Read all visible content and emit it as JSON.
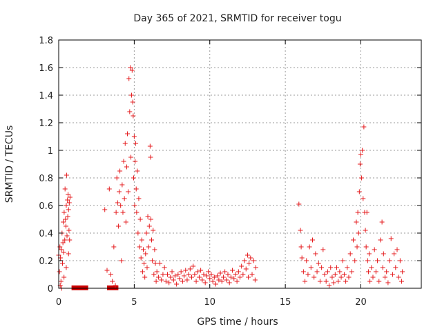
{
  "chart_data": {
    "type": "scatter",
    "title": "Day 365 of 2021, SRMTID for receiver togu",
    "xlabel": "GPS time / hours",
    "ylabel": "SRMTID / TECUs",
    "xlim": [
      0,
      24
    ],
    "ylim": [
      0,
      1.8
    ],
    "xticks": [
      0,
      5,
      10,
      15,
      20
    ],
    "xtick_labels": [
      "0",
      "5",
      "10",
      "15",
      "20"
    ],
    "yticks": [
      0,
      0.2,
      0.4,
      0.6,
      0.8,
      1.0,
      1.2,
      1.4,
      1.6,
      1.8
    ],
    "ytick_labels": [
      "0",
      "0.2",
      "0.4",
      "0.6",
      "0.8",
      "1",
      "1.2",
      "1.4",
      "1.6",
      "1.8"
    ],
    "grid": true,
    "marker": "+",
    "series": [
      {
        "name": "SRMTID",
        "color": "#e41a1c",
        "points": [
          [
            0.0,
            0.24
          ],
          [
            0.05,
            0.12
          ],
          [
            0.08,
            0.3
          ],
          [
            0.12,
            0.22
          ],
          [
            0.15,
            0.05
          ],
          [
            0.18,
            0.28
          ],
          [
            0.22,
            0.4
          ],
          [
            0.25,
            0.18
          ],
          [
            0.28,
            0.33
          ],
          [
            0.3,
            0.48
          ],
          [
            0.33,
            0.26
          ],
          [
            0.36,
            0.55
          ],
          [
            0.4,
            0.35
          ],
          [
            0.42,
            0.72
          ],
          [
            0.45,
            0.5
          ],
          [
            0.48,
            0.45
          ],
          [
            0.5,
            0.6
          ],
          [
            0.52,
            0.82
          ],
          [
            0.55,
            0.38
          ],
          [
            0.58,
            0.64
          ],
          [
            0.6,
            0.52
          ],
          [
            0.62,
            0.68
          ],
          [
            0.65,
            0.57
          ],
          [
            0.68,
            0.42
          ],
          [
            0.7,
            0.62
          ],
          [
            0.72,
            0.35
          ],
          [
            0.75,
            0.66
          ],
          [
            0.1,
            0.02
          ],
          [
            0.2,
            0.0
          ],
          [
            0.35,
            0.08
          ],
          [
            0.5,
            0.15
          ],
          [
            0.65,
            0.25
          ],
          [
            3.05,
            0.57
          ],
          [
            3.2,
            0.13
          ],
          [
            3.35,
            0.72
          ],
          [
            3.45,
            0.1
          ],
          [
            3.55,
            0.05
          ],
          [
            3.65,
            0.3
          ],
          [
            3.75,
            0.02
          ],
          [
            3.8,
            0.55
          ],
          [
            3.85,
            0.8
          ],
          [
            3.9,
            0.62
          ],
          [
            3.95,
            0.45
          ],
          [
            4.0,
            0.7
          ],
          [
            4.05,
            0.85
          ],
          [
            4.1,
            0.6
          ],
          [
            4.15,
            0.2
          ],
          [
            4.2,
            0.75
          ],
          [
            4.25,
            0.55
          ],
          [
            4.3,
            0.92
          ],
          [
            4.35,
            0.65
          ],
          [
            4.4,
            1.05
          ],
          [
            4.45,
            0.48
          ],
          [
            4.5,
            0.88
          ],
          [
            4.55,
            1.12
          ],
          [
            4.6,
            0.7
          ],
          [
            4.65,
            1.52
          ],
          [
            4.7,
            1.28
          ],
          [
            4.75,
            1.6
          ],
          [
            4.78,
            0.95
          ],
          [
            4.82,
            1.4
          ],
          [
            4.86,
            1.58
          ],
          [
            4.9,
            1.35
          ],
          [
            4.93,
            1.25
          ],
          [
            4.96,
            0.8
          ],
          [
            5.0,
            1.1
          ],
          [
            5.03,
            0.6
          ],
          [
            5.06,
            0.92
          ],
          [
            5.1,
            1.05
          ],
          [
            5.13,
            0.72
          ],
          [
            5.16,
            0.55
          ],
          [
            5.2,
            0.85
          ],
          [
            5.25,
            0.4
          ],
          [
            5.3,
            0.65
          ],
          [
            5.35,
            0.3
          ],
          [
            5.4,
            0.5
          ],
          [
            5.45,
            0.22
          ],
          [
            5.5,
            0.35
          ],
          [
            5.55,
            0.12
          ],
          [
            5.6,
            0.28
          ],
          [
            5.65,
            0.18
          ],
          [
            5.7,
            0.08
          ],
          [
            5.75,
            0.25
          ],
          [
            5.8,
            0.4
          ],
          [
            5.85,
            0.15
          ],
          [
            5.9,
            0.52
          ],
          [
            5.95,
            0.3
          ],
          [
            6.0,
            0.45
          ],
          [
            6.05,
            1.03
          ],
          [
            6.08,
            0.95
          ],
          [
            6.1,
            0.5
          ],
          [
            6.15,
            0.35
          ],
          [
            6.2,
            0.2
          ],
          [
            6.25,
            0.42
          ],
          [
            6.3,
            0.1
          ],
          [
            6.35,
            0.28
          ],
          [
            6.4,
            0.18
          ],
          [
            6.45,
            0.05
          ],
          [
            6.5,
            0.12
          ],
          [
            6.6,
            0.08
          ],
          [
            6.7,
            0.18
          ],
          [
            6.8,
            0.06
          ],
          [
            6.9,
            0.1
          ],
          [
            7.0,
            0.15
          ],
          [
            7.1,
            0.05
          ],
          [
            7.2,
            0.1
          ],
          [
            7.3,
            0.04
          ],
          [
            7.4,
            0.08
          ],
          [
            7.5,
            0.12
          ],
          [
            7.6,
            0.06
          ],
          [
            7.7,
            0.09
          ],
          [
            7.8,
            0.03
          ],
          [
            7.9,
            0.1
          ],
          [
            8.0,
            0.07
          ],
          [
            8.1,
            0.12
          ],
          [
            8.2,
            0.05
          ],
          [
            8.3,
            0.09
          ],
          [
            8.4,
            0.13
          ],
          [
            8.5,
            0.06
          ],
          [
            8.6,
            0.1
          ],
          [
            8.7,
            0.14
          ],
          [
            8.8,
            0.08
          ],
          [
            8.9,
            0.16
          ],
          [
            9.0,
            0.1
          ],
          [
            9.1,
            0.05
          ],
          [
            9.2,
            0.12
          ],
          [
            9.3,
            0.08
          ],
          [
            9.4,
            0.13
          ],
          [
            9.5,
            0.06
          ],
          [
            9.6,
            0.1
          ],
          [
            9.7,
            0.04
          ],
          [
            9.8,
            0.09
          ],
          [
            9.9,
            0.12
          ],
          [
            10.0,
            0.07
          ],
          [
            10.1,
            0.1
          ],
          [
            10.2,
            0.05
          ],
          [
            10.3,
            0.08
          ],
          [
            10.4,
            0.03
          ],
          [
            10.5,
            0.09
          ],
          [
            10.6,
            0.06
          ],
          [
            10.7,
            0.11
          ],
          [
            10.8,
            0.05
          ],
          [
            10.9,
            0.08
          ],
          [
            11.0,
            0.12
          ],
          [
            11.1,
            0.06
          ],
          [
            11.2,
            0.1
          ],
          [
            11.3,
            0.04
          ],
          [
            11.4,
            0.08
          ],
          [
            11.5,
            0.13
          ],
          [
            11.6,
            0.07
          ],
          [
            11.7,
            0.1
          ],
          [
            11.8,
            0.05
          ],
          [
            11.9,
            0.12
          ],
          [
            12.0,
            0.08
          ],
          [
            12.1,
            0.16
          ],
          [
            12.2,
            0.1
          ],
          [
            12.3,
            0.2
          ],
          [
            12.4,
            0.14
          ],
          [
            12.5,
            0.24
          ],
          [
            12.55,
            0.08
          ],
          [
            12.6,
            0.18
          ],
          [
            12.7,
            0.22
          ],
          [
            12.8,
            0.1
          ],
          [
            12.9,
            0.2
          ],
          [
            13.0,
            0.06
          ],
          [
            13.05,
            0.15
          ],
          [
            15.9,
            0.61
          ],
          [
            16.0,
            0.42
          ],
          [
            16.05,
            0.3
          ],
          [
            16.1,
            0.22
          ],
          [
            16.2,
            0.12
          ],
          [
            16.3,
            0.05
          ],
          [
            16.4,
            0.2
          ],
          [
            16.5,
            0.1
          ],
          [
            16.6,
            0.3
          ],
          [
            16.7,
            0.15
          ],
          [
            16.8,
            0.35
          ],
          [
            16.9,
            0.08
          ],
          [
            17.0,
            0.25
          ],
          [
            17.1,
            0.12
          ],
          [
            17.2,
            0.18
          ],
          [
            17.3,
            0.05
          ],
          [
            17.4,
            0.15
          ],
          [
            17.5,
            0.28
          ],
          [
            17.6,
            0.1
          ],
          [
            17.7,
            0.05
          ],
          [
            17.8,
            0.12
          ],
          [
            17.9,
            0.02
          ],
          [
            18.0,
            0.15
          ],
          [
            18.1,
            0.08
          ],
          [
            18.2,
            0.04
          ],
          [
            18.3,
            0.1
          ],
          [
            18.4,
            0.15
          ],
          [
            18.5,
            0.05
          ],
          [
            18.6,
            0.12
          ],
          [
            18.7,
            0.08
          ],
          [
            18.8,
            0.2
          ],
          [
            18.9,
            0.1
          ],
          [
            19.0,
            0.05
          ],
          [
            19.1,
            0.15
          ],
          [
            19.2,
            0.08
          ],
          [
            19.3,
            0.25
          ],
          [
            19.4,
            0.12
          ],
          [
            19.5,
            0.35
          ],
          [
            19.6,
            0.2
          ],
          [
            19.7,
            0.48
          ],
          [
            19.75,
            0.3
          ],
          [
            19.8,
            0.55
          ],
          [
            19.85,
            0.4
          ],
          [
            19.9,
            0.7
          ],
          [
            19.95,
            0.9
          ],
          [
            20.0,
            0.97
          ],
          [
            20.05,
            0.8
          ],
          [
            20.1,
            1.0
          ],
          [
            20.15,
            0.65
          ],
          [
            20.2,
            1.17
          ],
          [
            20.25,
            0.55
          ],
          [
            20.3,
            0.42
          ],
          [
            20.35,
            0.3
          ],
          [
            20.4,
            0.55
          ],
          [
            20.45,
            0.2
          ],
          [
            20.5,
            0.12
          ],
          [
            20.55,
            0.25
          ],
          [
            20.6,
            0.05
          ],
          [
            20.7,
            0.15
          ],
          [
            20.8,
            0.08
          ],
          [
            20.9,
            0.28
          ],
          [
            21.0,
            0.12
          ],
          [
            21.1,
            0.2
          ],
          [
            21.2,
            0.05
          ],
          [
            21.3,
            0.35
          ],
          [
            21.4,
            0.48
          ],
          [
            21.45,
            0.15
          ],
          [
            21.5,
            0.25
          ],
          [
            21.6,
            0.08
          ],
          [
            21.7,
            0.12
          ],
          [
            21.8,
            0.04
          ],
          [
            21.9,
            0.2
          ],
          [
            22.0,
            0.36
          ],
          [
            22.1,
            0.1
          ],
          [
            22.2,
            0.25
          ],
          [
            22.3,
            0.15
          ],
          [
            22.4,
            0.28
          ],
          [
            22.5,
            0.08
          ],
          [
            22.6,
            0.2
          ],
          [
            22.7,
            0.05
          ],
          [
            22.75,
            0.12
          ]
        ]
      }
    ],
    "data_gaps": {
      "name": "data gaps",
      "color": "#cc0000",
      "y": 0,
      "ranges": [
        [
          0.85,
          1.95
        ],
        [
          3.2,
          3.95
        ]
      ]
    }
  }
}
